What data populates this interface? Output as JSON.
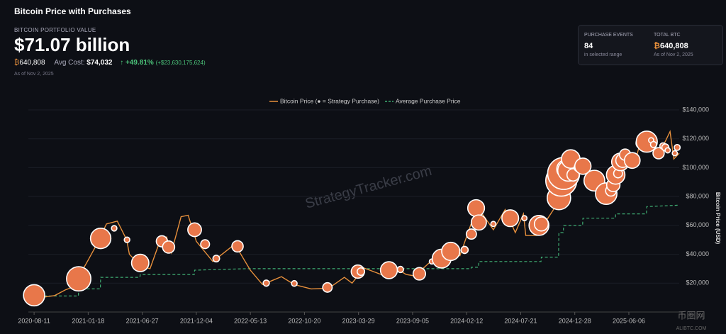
{
  "header": {
    "title": "Bitcoin Price with Purchases"
  },
  "portfolio": {
    "label": "BITCOIN PORTFOLIO VALUE",
    "value": "$71.07 billion",
    "btc_symbol": "₿",
    "btc": "640,808",
    "avg_cost_label": "Avg Cost:",
    "avg_cost": "$74,032",
    "change": "↑ +49.81%",
    "change_abs": "(+$23,630,175,624)",
    "as_of": "As of Nov 2, 2025"
  },
  "stats": [
    {
      "label": "PURCHASE EVENTS",
      "value": "84",
      "note": "in selected range"
    },
    {
      "label": "TOTAL BTC",
      "symbol": "₿",
      "value": "640,808",
      "note": "As of Nov 2, 2025"
    }
  ],
  "watermark": "StrategyTracker.com",
  "corner_mark": {
    "name": "币圈网",
    "site": "ALIBTC.COM"
  },
  "chart_data": {
    "type": "line",
    "y_label": "Bitcoin Price (USD)",
    "xlim": [
      "2020-07-25",
      "2025-11-02"
    ],
    "xticks": [
      "2020-08-11",
      "2021-01-18",
      "2021-06-27",
      "2021-12-04",
      "2022-05-13",
      "2022-10-20",
      "2023-03-29",
      "2023-09-05",
      "2024-02-12",
      "2024-07-21",
      "2024-12-28",
      "2025-06-06"
    ],
    "ylim": [
      0,
      140000
    ],
    "yticks": [
      {
        "value": 20000,
        "label": "$20,000"
      },
      {
        "value": 40000,
        "label": "$40,000"
      },
      {
        "value": 60000,
        "label": "$60,000"
      },
      {
        "value": 80000,
        "label": "$80,000"
      },
      {
        "value": 100000,
        "label": "$100,000"
      },
      {
        "value": 120000,
        "label": "$120,000"
      },
      {
        "value": 140000,
        "label": "$140,000"
      }
    ],
    "series": [
      {
        "name": "Bitcoin Price (● = Strategy Purchase)",
        "color": "#e8903c",
        "style": "solid",
        "x": [
          "2020-08-11",
          "2020-09-11",
          "2020-10-11",
          "2020-11-11",
          "2020-12-11",
          "2021-01-01",
          "2021-01-18",
          "2021-02-15",
          "2021-03-13",
          "2021-04-14",
          "2021-05-12",
          "2021-05-20",
          "2021-06-22",
          "2021-07-20",
          "2021-08-15",
          "2021-09-07",
          "2021-09-21",
          "2021-10-20",
          "2021-11-10",
          "2021-12-04",
          "2022-01-22",
          "2022-03-28",
          "2022-05-13",
          "2022-06-18",
          "2022-08-13",
          "2022-09-20",
          "2022-11-09",
          "2022-12-31",
          "2023-02-15",
          "2023-03-10",
          "2023-04-14",
          "2023-06-15",
          "2023-07-13",
          "2023-08-17",
          "2023-09-11",
          "2023-10-24",
          "2023-12-05",
          "2024-01-23",
          "2024-03-14",
          "2024-05-01",
          "2024-06-05",
          "2024-07-05",
          "2024-07-29",
          "2024-08-05",
          "2024-09-06",
          "2024-10-29",
          "2024-11-22",
          "2024-12-17",
          "2025-01-21",
          "2025-02-27",
          "2025-04-08",
          "2025-05-22",
          "2025-06-22",
          "2025-07-14",
          "2025-08-14",
          "2025-09-01",
          "2025-10-06",
          "2025-10-17",
          "2025-11-02"
        ],
        "values": [
          11500,
          10400,
          11400,
          15300,
          18000,
          29000,
          36000,
          48000,
          61000,
          63000,
          50000,
          40000,
          32000,
          30000,
          47000,
          52000,
          41000,
          66000,
          67000,
          49000,
          35000,
          47000,
          29000,
          19000,
          24500,
          19000,
          16000,
          16500,
          24000,
          20000,
          30500,
          25000,
          31000,
          26000,
          25000,
          34000,
          44000,
          39000,
          73000,
          57000,
          71000,
          55000,
          68000,
          53000,
          53000,
          72000,
          99000,
          106000,
          106000,
          84000,
          76000,
          111000,
          101000,
          122000,
          124000,
          108000,
          125000,
          106000,
          110000
        ]
      },
      {
        "name": "Average Purchase Price",
        "color": "#3fae73",
        "style": "dashed",
        "x": [
          "2020-08-11",
          "2020-12-20",
          "2020-12-21",
          "2021-02-23",
          "2021-02-24",
          "2021-06-20",
          "2021-06-21",
          "2021-11-28",
          "2021-11-29",
          "2022-05-01",
          "2024-02-25",
          "2024-02-26",
          "2024-03-18",
          "2024-03-19",
          "2024-09-19",
          "2024-09-20",
          "2024-11-10",
          "2024-11-11",
          "2024-11-24",
          "2024-11-25",
          "2025-01-20",
          "2025-01-21",
          "2025-04-27",
          "2025-04-28",
          "2025-07-28",
          "2025-07-29",
          "2025-11-02"
        ],
        "values": [
          11100,
          11100,
          16000,
          16000,
          24000,
          24000,
          26000,
          26000,
          29000,
          30000,
          30000,
          31000,
          31000,
          35000,
          35000,
          38000,
          38000,
          55000,
          55000,
          60000,
          60000,
          65000,
          65000,
          68000,
          68000,
          73000,
          74032
        ]
      },
      {
        "name": "Strategy Purchase",
        "color": "#e8774a",
        "style": "bubble",
        "x": [
          "2020-08-11",
          "2020-12-21",
          "2021-02-24",
          "2021-04-05",
          "2021-05-13",
          "2021-06-21",
          "2021-08-24",
          "2021-09-13",
          "2021-11-29",
          "2021-12-30",
          "2022-02-01",
          "2022-04-05",
          "2022-06-29",
          "2022-09-20",
          "2022-12-27",
          "2023-03-27",
          "2023-04-05",
          "2023-06-27",
          "2023-07-31",
          "2023-09-25",
          "2023-11-01",
          "2023-11-30",
          "2023-12-27",
          "2024-02-06",
          "2024-02-26",
          "2024-03-11",
          "2024-03-19",
          "2024-05-01",
          "2024-06-20",
          "2024-08-01",
          "2024-09-13",
          "2024-09-20",
          "2024-11-11",
          "2024-11-18",
          "2024-11-25",
          "2024-12-02",
          "2024-12-09",
          "2024-12-16",
          "2024-12-23",
          "2025-01-06",
          "2025-01-13",
          "2025-01-21",
          "2025-02-24",
          "2025-03-31",
          "2025-04-14",
          "2025-04-21",
          "2025-04-28",
          "2025-05-05",
          "2025-05-12",
          "2025-05-19",
          "2025-05-26",
          "2025-06-16",
          "2025-07-14",
          "2025-07-29",
          "2025-08-11",
          "2025-08-18",
          "2025-09-02",
          "2025-09-15",
          "2025-09-22",
          "2025-09-29",
          "2025-10-20",
          "2025-10-27"
        ],
        "values": [
          11600,
          23000,
          51000,
          58000,
          50000,
          34000,
          49000,
          45000,
          57000,
          47000,
          37000,
          45500,
          20000,
          19800,
          17000,
          28000,
          28000,
          29000,
          29500,
          26500,
          35000,
          37000,
          42000,
          43000,
          54000,
          72000,
          62000,
          61000,
          65000,
          65000,
          60000,
          61000,
          79000,
          91000,
          96000,
          99000,
          98000,
          106000,
          95000,
          100000,
          102000,
          101000,
          91000,
          82000,
          84000,
          88000,
          95000,
          96000,
          104000,
          105000,
          109000,
          105000,
          117000,
          118000,
          119000,
          116000,
          110000,
          115000,
          114000,
          112000,
          110000,
          114000
        ],
        "sizes": [
          21454,
          29646,
          19452,
          253,
          271,
          13005,
          3907,
          5050,
          7002,
          1914,
          660,
          4167,
          480,
          301,
          2395,
          6455,
          1045,
          12333,
          467,
          5445,
          155,
          16130,
          14620,
          850,
          3000,
          12000,
          9245,
          164,
          11931,
          169,
          18300,
          7420,
          27200,
          51780,
          55500,
          15400,
          21550,
          15350,
          5262,
          1070,
          2530,
          11000,
          20356,
          22048,
          3459,
          6556,
          15355,
          1895,
          13390,
          7390,
          4020,
          10100,
          4225,
          21021,
          155,
          430,
          4048,
          525,
          850,
          196,
          168,
          390
        ]
      }
    ]
  }
}
